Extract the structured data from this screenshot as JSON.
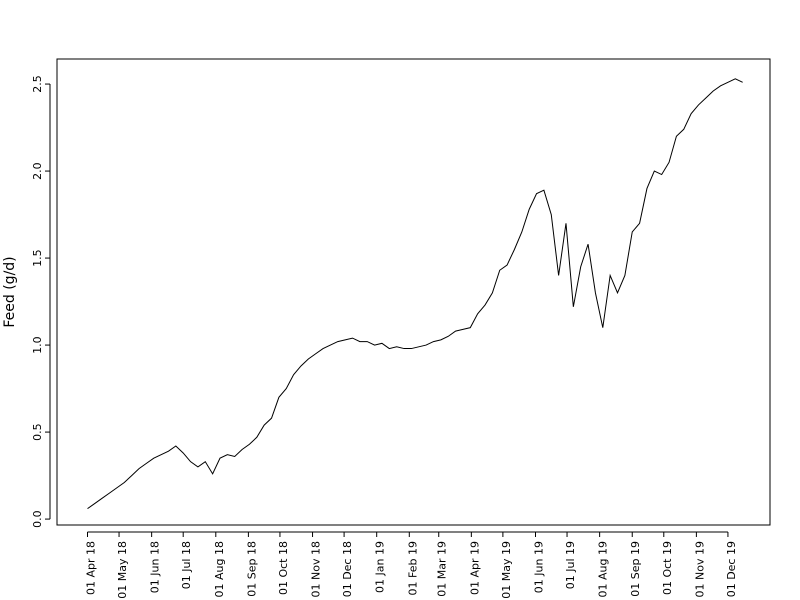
{
  "chart_data": {
    "type": "line",
    "y_label": "Feed (g/d)",
    "color": "#000000",
    "x": [
      "2018-04-01",
      "2018-04-08",
      "2018-04-15",
      "2018-04-22",
      "2018-04-29",
      "2018-05-06",
      "2018-05-13",
      "2018-05-20",
      "2018-05-27",
      "2018-06-03",
      "2018-06-10",
      "2018-06-17",
      "2018-06-24",
      "2018-07-01",
      "2018-07-08",
      "2018-07-15",
      "2018-07-22",
      "2018-07-29",
      "2018-08-05",
      "2018-08-12",
      "2018-08-19",
      "2018-08-26",
      "2018-09-02",
      "2018-09-09",
      "2018-09-16",
      "2018-09-23",
      "2018-09-30",
      "2018-10-07",
      "2018-10-14",
      "2018-10-21",
      "2018-10-28",
      "2018-11-04",
      "2018-11-11",
      "2018-11-18",
      "2018-11-25",
      "2018-12-02",
      "2018-12-09",
      "2018-12-16",
      "2018-12-23",
      "2018-12-30",
      "2019-01-06",
      "2019-01-13",
      "2019-01-20",
      "2019-01-27",
      "2019-02-03",
      "2019-02-10",
      "2019-02-17",
      "2019-02-24",
      "2019-03-03",
      "2019-03-10",
      "2019-03-17",
      "2019-03-24",
      "2019-03-31",
      "2019-04-07",
      "2019-04-14",
      "2019-04-21",
      "2019-04-28",
      "2019-05-05",
      "2019-05-12",
      "2019-05-19",
      "2019-05-26",
      "2019-06-02",
      "2019-06-09",
      "2019-06-16",
      "2019-06-23",
      "2019-06-30",
      "2019-07-07",
      "2019-07-14",
      "2019-07-21",
      "2019-07-28",
      "2019-08-04",
      "2019-08-11",
      "2019-08-18",
      "2019-08-25",
      "2019-09-01",
      "2019-09-08",
      "2019-09-15",
      "2019-09-22",
      "2019-09-29",
      "2019-10-06",
      "2019-10-13",
      "2019-10-20",
      "2019-10-27",
      "2019-11-03",
      "2019-11-10",
      "2019-11-17",
      "2019-11-24",
      "2019-12-01",
      "2019-12-08",
      "2019-12-15"
    ],
    "values": [
      0.06,
      0.09,
      0.12,
      0.15,
      0.18,
      0.21,
      0.25,
      0.29,
      0.32,
      0.35,
      0.37,
      0.39,
      0.42,
      0.38,
      0.33,
      0.3,
      0.33,
      0.26,
      0.35,
      0.37,
      0.36,
      0.4,
      0.43,
      0.47,
      0.54,
      0.58,
      0.7,
      0.75,
      0.83,
      0.88,
      0.92,
      0.95,
      0.98,
      1.0,
      1.02,
      1.03,
      1.04,
      1.02,
      1.02,
      1.0,
      1.01,
      0.98,
      0.99,
      0.98,
      0.98,
      0.99,
      1.0,
      1.02,
      1.03,
      1.05,
      1.08,
      1.09,
      1.1,
      1.18,
      1.23,
      1.3,
      1.43,
      1.46,
      1.55,
      1.65,
      1.78,
      1.87,
      1.89,
      1.75,
      1.4,
      1.7,
      1.22,
      1.45,
      1.58,
      1.3,
      1.1,
      1.4,
      1.3,
      1.4,
      1.65,
      1.7,
      1.9,
      2.0,
      1.98,
      2.05,
      2.2,
      2.24,
      2.33,
      2.38,
      2.42,
      2.46,
      2.49,
      2.51,
      2.53,
      2.51
    ],
    "xlim": [
      "2018-03-03",
      "2020-01-10"
    ],
    "xticks": [
      {
        "value": "2018-04-01",
        "label": "01 Apr 18"
      },
      {
        "value": "2018-05-01",
        "label": "01 May 18"
      },
      {
        "value": "2018-06-01",
        "label": "01 Jun 18"
      },
      {
        "value": "2018-07-01",
        "label": "01 Jul 18"
      },
      {
        "value": "2018-08-01",
        "label": "01 Aug 18"
      },
      {
        "value": "2018-09-01",
        "label": "01 Sep 18"
      },
      {
        "value": "2018-10-01",
        "label": "01 Oct 18"
      },
      {
        "value": "2018-11-01",
        "label": "01 Nov 18"
      },
      {
        "value": "2018-12-01",
        "label": "01 Dec 18"
      },
      {
        "value": "2019-01-01",
        "label": "01 Jan 19"
      },
      {
        "value": "2019-02-01",
        "label": "01 Feb 19"
      },
      {
        "value": "2019-03-01",
        "label": "01 Mar 19"
      },
      {
        "value": "2019-04-01",
        "label": "01 Apr 19"
      },
      {
        "value": "2019-05-01",
        "label": "01 May 19"
      },
      {
        "value": "2019-06-01",
        "label": "01 Jun 19"
      },
      {
        "value": "2019-07-01",
        "label": "01 Jul 19"
      },
      {
        "value": "2019-08-01",
        "label": "01 Aug 19"
      },
      {
        "value": "2019-09-01",
        "label": "01 Sep 19"
      },
      {
        "value": "2019-10-01",
        "label": "01 Oct 19"
      },
      {
        "value": "2019-11-01",
        "label": "01 Nov 19"
      },
      {
        "value": "2019-12-01",
        "label": "01 Dec 19"
      }
    ],
    "ylim": [
      -0.034,
      2.644
    ],
    "yticks": [
      {
        "value": 0,
        "label": "0.0"
      },
      0.5,
      {
        "value": 1,
        "label": "1.0"
      },
      1.5,
      {
        "value": 2,
        "label": "2.0"
      },
      2.5
    ]
  }
}
